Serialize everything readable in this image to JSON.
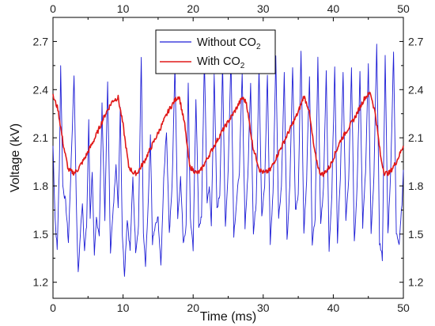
{
  "chart_data": {
    "type": "line",
    "xlabel": "Time (ms)",
    "ylabel": "Voltage (kV)",
    "xlim": [
      0,
      50
    ],
    "ylim": [
      1.1,
      2.85
    ],
    "x_ticks": [
      "0",
      "10",
      "20",
      "30",
      "40",
      "50"
    ],
    "y_ticks": [
      "1.2",
      "1.5",
      "1.8",
      "2.1",
      "2.4",
      "2.7"
    ],
    "grid": false,
    "legend_position": "top-center",
    "mirrored_axes": true,
    "series": [
      {
        "name": "Without CO",
        "name_subscript": "2",
        "color": "#1f1fd6",
        "x": [
          0.0,
          0.3,
          0.6,
          0.9,
          1.1,
          1.4,
          1.8,
          2.2,
          2.6,
          3.0,
          3.4,
          3.6,
          3.9,
          4.2,
          4.5,
          4.8,
          5.1,
          5.3,
          5.6,
          5.9,
          6.2,
          6.6,
          7.0,
          7.4,
          7.8,
          8.2,
          8.6,
          9.0,
          9.3,
          9.6,
          9.9,
          10.2,
          10.6,
          11.0,
          11.4,
          11.8,
          12.2,
          12.6,
          12.9,
          13.2,
          13.6,
          13.9,
          14.2,
          14.6,
          15.0,
          15.4,
          15.8,
          16.2,
          16.6,
          17.0,
          17.4,
          17.8,
          18.2,
          18.6,
          19.0,
          19.3,
          19.6,
          20.0,
          20.4,
          20.8,
          21.2,
          21.6,
          22.0,
          22.3,
          22.6,
          23.0,
          23.4,
          23.8,
          24.2,
          24.6,
          25.0,
          25.4,
          25.8,
          26.2,
          26.6,
          27.0,
          27.4,
          27.8,
          28.2,
          28.6,
          29.0,
          29.4,
          29.8,
          30.2,
          30.6,
          31.0,
          31.4,
          31.8,
          32.2,
          32.6,
          33.0,
          33.4,
          33.8,
          34.2,
          34.6,
          35.0,
          35.4,
          35.8,
          36.2,
          36.6,
          37.0,
          37.4,
          37.8,
          38.2,
          38.6,
          39.0,
          39.4,
          39.8,
          40.2,
          40.6,
          41.0,
          41.4,
          41.8,
          42.2,
          42.6,
          43.0,
          43.4,
          43.8,
          44.2,
          44.6,
          45.0,
          45.4,
          45.8,
          46.2,
          46.6,
          47.0,
          47.4,
          47.8,
          48.2,
          48.6,
          49.0,
          49.4,
          49.8,
          50.0
        ],
        "values": [
          2.05,
          1.6,
          1.4,
          1.9,
          2.55,
          1.8,
          1.7,
          1.45,
          1.95,
          2.5,
          1.55,
          1.25,
          1.5,
          1.7,
          1.4,
          1.55,
          2.2,
          1.6,
          1.9,
          1.35,
          1.6,
          1.5,
          2.3,
          1.6,
          2.45,
          1.4,
          1.65,
          1.95,
          1.65,
          2.3,
          1.5,
          1.25,
          1.6,
          1.4,
          1.85,
          1.4,
          1.55,
          2.6,
          1.5,
          1.3,
          1.7,
          2.1,
          1.45,
          1.55,
          1.6,
          1.3,
          1.85,
          2.15,
          1.5,
          1.8,
          2.55,
          1.6,
          1.85,
          1.45,
          1.55,
          2.45,
          1.6,
          1.4,
          2.35,
          1.55,
          1.6,
          2.6,
          1.7,
          1.8,
          1.55,
          2.5,
          1.65,
          1.75,
          2.55,
          1.55,
          1.9,
          2.6,
          1.5,
          1.7,
          1.9,
          2.5,
          1.55,
          1.85,
          2.45,
          1.5,
          1.7,
          2.55,
          1.6,
          1.8,
          2.5,
          1.45,
          1.75,
          2.6,
          1.6,
          1.8,
          2.5,
          1.45,
          1.8,
          2.55,
          1.65,
          1.75,
          2.65,
          1.5,
          1.85,
          2.5,
          1.45,
          1.6,
          2.6,
          1.55,
          1.8,
          2.5,
          1.4,
          1.75,
          2.55,
          1.45,
          1.85,
          2.5,
          1.6,
          1.85,
          2.55,
          1.45,
          1.8,
          2.5,
          1.55,
          1.9,
          2.55,
          1.5,
          1.85,
          2.7,
          1.45,
          1.35,
          2.6,
          1.5,
          1.9,
          2.65,
          1.5,
          1.45,
          1.7,
          1.9
        ],
        "noise_amplitude": 0.02
      },
      {
        "name": "With CO",
        "name_subscript": "2",
        "color": "#e01818",
        "x": [
          0.0,
          0.7,
          1.5,
          2.2,
          3.0,
          3.5,
          4.5,
          6.0,
          7.5,
          8.5,
          9.3,
          10.0,
          10.8,
          11.5,
          12.0,
          13.0,
          15.0,
          16.5,
          17.5,
          18.0,
          18.8,
          19.5,
          20.5,
          21.0,
          22.0,
          24.0,
          26.0,
          27.0,
          27.6,
          28.5,
          29.5,
          30.2,
          31.0,
          33.0,
          35.0,
          35.8,
          36.5,
          37.3,
          38.0,
          38.5,
          39.5,
          41.0,
          43.0,
          44.5,
          45.3,
          46.0,
          46.8,
          47.3,
          48.0,
          49.0,
          50.0
        ],
        "values": [
          2.36,
          2.28,
          2.05,
          1.9,
          1.88,
          1.9,
          1.97,
          2.1,
          2.25,
          2.33,
          2.35,
          2.18,
          1.92,
          1.88,
          1.88,
          1.95,
          2.13,
          2.27,
          2.34,
          2.36,
          2.18,
          1.92,
          1.88,
          1.89,
          1.97,
          2.13,
          2.27,
          2.35,
          2.32,
          2.05,
          1.9,
          1.88,
          1.9,
          2.08,
          2.26,
          2.36,
          2.28,
          2.02,
          1.89,
          1.87,
          1.92,
          2.08,
          2.22,
          2.35,
          2.38,
          2.25,
          1.97,
          1.88,
          1.88,
          1.95,
          2.05
        ],
        "noise_amplitude": 0.015
      }
    ]
  }
}
